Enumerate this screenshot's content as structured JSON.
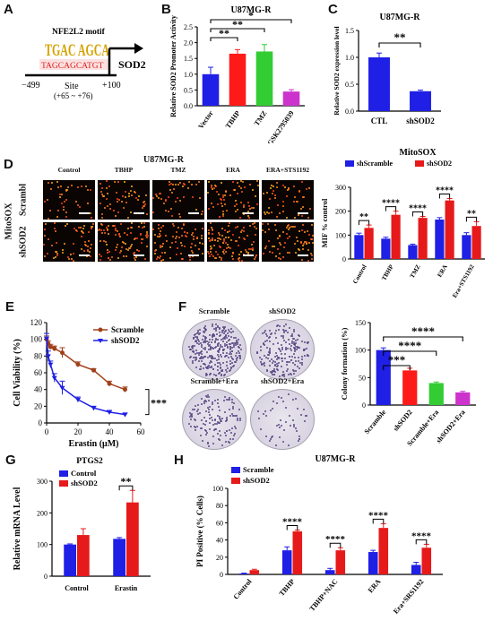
{
  "panels": {
    "A": {
      "letter": "A",
      "motif_title": "NFE2L2 motif",
      "motif_logo": "TGAC AGCA",
      "site_seq": "TAGCAGCATGT",
      "gene": "SOD2",
      "left_pos": "−499",
      "site_label": "Site",
      "site_range": "(+65 ~ +76)",
      "right_pos": "+100"
    },
    "B": {
      "letter": "B",
      "chart_data": {
        "type": "bar",
        "title": "U87MG-R",
        "ylabel": "Relative SOD2 Promoter Activity",
        "categories": [
          "Vector",
          "TBHP",
          "TMZ",
          "GSK2795039"
        ],
        "values": [
          1.0,
          1.65,
          1.72,
          0.45
        ],
        "errors": [
          0.22,
          0.13,
          0.22,
          0.06
        ],
        "colors": [
          "#1f1fe6",
          "#ff1a1a",
          "#33cc33",
          "#cc33cc"
        ],
        "ylim": [
          0,
          2.5
        ],
        "yticks": [
          0.0,
          0.5,
          1.0,
          1.5,
          2.0,
          2.5
        ],
        "significance": [
          {
            "pair": [
              0,
              1
            ],
            "label": "**"
          },
          {
            "pair": [
              0,
              2
            ],
            "label": "**"
          },
          {
            "pair": [
              0,
              3
            ],
            "label": "*"
          }
        ]
      }
    },
    "C": {
      "letter": "C",
      "chart_data": {
        "type": "bar",
        "title": "U87MG-R",
        "ylabel": "Relative SOD2 expression level",
        "categories": [
          "CTL",
          "shSOD2"
        ],
        "values": [
          1.0,
          0.37
        ],
        "errors": [
          0.08,
          0.02
        ],
        "colors": [
          "#1f1fe6",
          "#1f1fe6"
        ],
        "ylim": [
          0,
          1.5
        ],
        "yticks": [
          0.0,
          0.5,
          1.0,
          1.5
        ],
        "significance": [
          {
            "pair": [
              0,
              1
            ],
            "label": "**"
          }
        ]
      }
    },
    "D": {
      "letter": "D",
      "title": "U87MG-R",
      "col_labels": [
        "Control",
        "TBHP",
        "TMZ",
        "ERA",
        "ERA+STS1192"
      ],
      "row_labels": [
        "Scrambl",
        "shSOD2"
      ],
      "side_label": "MitoSOX",
      "chart_data": {
        "type": "bar",
        "title": "MitoSOX",
        "ylabel": "MIF % control",
        "categories": [
          "Control",
          "TBHP",
          "TMZ",
          "ERA",
          "Era+STS1192"
        ],
        "series": [
          {
            "name": "shScramble",
            "color": "#1f1fe6",
            "values": [
              100,
              85,
              58,
              165,
              100
            ],
            "errors": [
              8,
              6,
              4,
              8,
              10
            ]
          },
          {
            "name": "shSOD2",
            "color": "#e61a1a",
            "values": [
              130,
              185,
              172,
              245,
              138
            ],
            "errors": [
              12,
              15,
              6,
              8,
              18
            ]
          }
        ],
        "ylim": [
          0,
          300
        ],
        "yticks": [
          0,
          100,
          200,
          300
        ],
        "significance": [
          "**",
          "****",
          "****",
          "****",
          "**"
        ],
        "legend": "top"
      }
    },
    "E": {
      "letter": "E",
      "chart_data": {
        "type": "line",
        "xlabel": "Erastin (μM)",
        "ylabel": "Cell Viability (%)",
        "xlim": [
          0,
          60
        ],
        "ylim": [
          0,
          120
        ],
        "xticks": [
          0,
          20,
          40,
          60
        ],
        "yticks": [
          0,
          20,
          40,
          60,
          80,
          100,
          120
        ],
        "series": [
          {
            "name": "Scramble",
            "color": "#a0401a",
            "x": [
              0,
              1,
              2.5,
              5,
              10,
              20,
              30,
              40,
              50
            ],
            "y": [
              100,
              95,
              91,
              89,
              84,
              70,
              63,
              47,
              40
            ],
            "errors": [
              4,
              3,
              3,
              3,
              6,
              3,
              2,
              3,
              3
            ]
          },
          {
            "name": "shSOD2",
            "color": "#1f1fe6",
            "x": [
              0,
              1,
              2.5,
              5,
              10,
              20,
              30,
              40,
              50
            ],
            "y": [
              101,
              80,
              70,
              54,
              42,
              28,
              18,
              13,
              10
            ],
            "errors": [
              6,
              6,
              4,
              5,
              8,
              3,
              2,
              2,
              2
            ]
          }
        ],
        "significance": "***",
        "legend": "top-right"
      }
    },
    "F": {
      "letter": "F",
      "plate_labels": [
        "Scramble",
        "shSOD2",
        "Scramble+Era",
        "shSOD2+Era"
      ],
      "chart_data": {
        "type": "bar",
        "ylabel": "Colony formation (%)",
        "categories": [
          "Scramble",
          "shSOD2",
          "Scramble+Era",
          "shSOD2+Era"
        ],
        "values": [
          100,
          63,
          40,
          23
        ],
        "errors": [
          4,
          4,
          2,
          2
        ],
        "colors": [
          "#1f1fe6",
          "#ff1a1a",
          "#33cc33",
          "#cc33cc"
        ],
        "ylim": [
          0,
          150
        ],
        "yticks": [
          0,
          50,
          100,
          150
        ],
        "significance": [
          {
            "pair": [
              0,
              1
            ],
            "label": "***"
          },
          {
            "pair": [
              0,
              2
            ],
            "label": "****"
          },
          {
            "pair": [
              0,
              3
            ],
            "label": "****"
          }
        ]
      }
    },
    "G": {
      "letter": "G",
      "chart_data": {
        "type": "bar",
        "title": "PTGS2",
        "ylabel": "Relative mRNA Level",
        "categories": [
          "Control",
          "Erastin"
        ],
        "series": [
          {
            "name": "Control",
            "color": "#1f1fe6",
            "values": [
              100,
              118
            ],
            "errors": [
              2,
              4
            ]
          },
          {
            "name": "shSOD2",
            "color": "#e61a1a",
            "values": [
              130,
              233
            ],
            "errors": [
              20,
              38
            ]
          }
        ],
        "ylim": [
          0,
          300
        ],
        "yticks": [
          0,
          100,
          200,
          300
        ],
        "significance": [
          "",
          "**"
        ],
        "legend": "top-left"
      }
    },
    "H": {
      "letter": "H",
      "chart_data": {
        "type": "bar",
        "title": "U87MG-R",
        "ylabel": "PI Positive (% Cells)",
        "categories": [
          "Control",
          "TBHP",
          "TBHP+NAC",
          "ERA",
          "Era+SRS1192"
        ],
        "series": [
          {
            "name": "Scramble",
            "color": "#1f1fe6",
            "values": [
              1,
              28,
              5,
              26,
              11
            ],
            "errors": [
              0.5,
              4,
              2,
              2,
              3
            ]
          },
          {
            "name": "shSOD2",
            "color": "#e61a1a",
            "values": [
              5,
              50,
              28,
              54,
              31
            ],
            "errors": [
              1,
              1.5,
              3,
              5,
              4
            ]
          }
        ],
        "ylim": [
          0,
          100
        ],
        "yticks": [
          0,
          20,
          40,
          60,
          80,
          100
        ],
        "significance": [
          "",
          "****",
          "****",
          "****",
          "****"
        ],
        "legend": "top-left"
      }
    }
  }
}
